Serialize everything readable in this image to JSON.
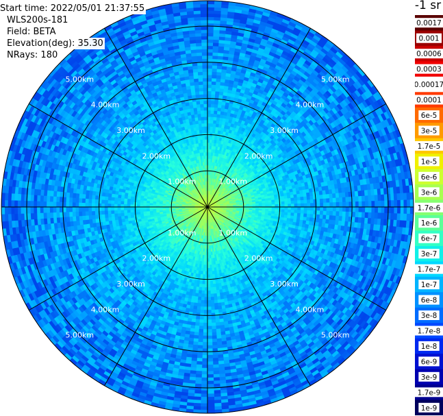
{
  "header": {
    "start_time": "Start time: 2022/05/01 21:37:55",
    "instrument": "WLS200s-181",
    "field": "Field: BETA",
    "elevation": "Elevation(deg): 35.30",
    "nrays": "NRays: 180"
  },
  "units": "-1 sr",
  "range_rings": [
    {
      "label": "1.00km",
      "km": 1
    },
    {
      "label": "2.00km",
      "km": 2
    },
    {
      "label": "3.00km",
      "km": 3
    },
    {
      "label": "4.00km",
      "km": 4
    },
    {
      "label": "5.00km",
      "km": 5
    }
  ],
  "max_range_km": 5.7,
  "spoke_azimuths_deg": [
    0,
    30,
    60,
    90,
    120,
    150,
    180,
    210,
    240,
    270,
    300,
    330
  ],
  "colorbar": [
    {
      "label": "0.0017",
      "color": "#5a0000"
    },
    {
      "label": "0.001",
      "color": "#9a0000"
    },
    {
      "label": "0.0006",
      "color": "#c80000"
    },
    {
      "label": "0.0003",
      "color": "#f00000"
    },
    {
      "label": "0.00017",
      "color": "#ffffff"
    },
    {
      "label": "0.0001",
      "color": "#ff3a00"
    },
    {
      "label": "6e-5",
      "color": "#ff6a00"
    },
    {
      "label": "3e-5",
      "color": "#ff9a00"
    },
    {
      "label": "1.7e-5",
      "color": "#ffc800"
    },
    {
      "label": "1e-5",
      "color": "#f0f000"
    },
    {
      "label": "6e-6",
      "color": "#cdff30"
    },
    {
      "label": "3e-6",
      "color": "#a8ff50"
    },
    {
      "label": "1.7e-6",
      "color": "#85ff70"
    },
    {
      "label": "1e-6",
      "color": "#5cff98"
    },
    {
      "label": "6e-7",
      "color": "#33ffc4"
    },
    {
      "label": "3e-7",
      "color": "#10f0e8"
    },
    {
      "label": "1.7e-7",
      "color": "#00d8ff"
    },
    {
      "label": "1e-7",
      "color": "#00b4ff"
    },
    {
      "label": "6e-8",
      "color": "#0090ff"
    },
    {
      "label": "3e-8",
      "color": "#006cff"
    },
    {
      "label": "1.7e-8",
      "color": "#0048ff"
    },
    {
      "label": "1e-8",
      "color": "#0028f0"
    },
    {
      "label": "6e-9",
      "color": "#0010d0"
    },
    {
      "label": "3e-9",
      "color": "#0000b0"
    },
    {
      "label": "1.7e-9",
      "color": "#000090"
    },
    {
      "label": "1e-9",
      "color": "#00005c"
    }
  ]
}
